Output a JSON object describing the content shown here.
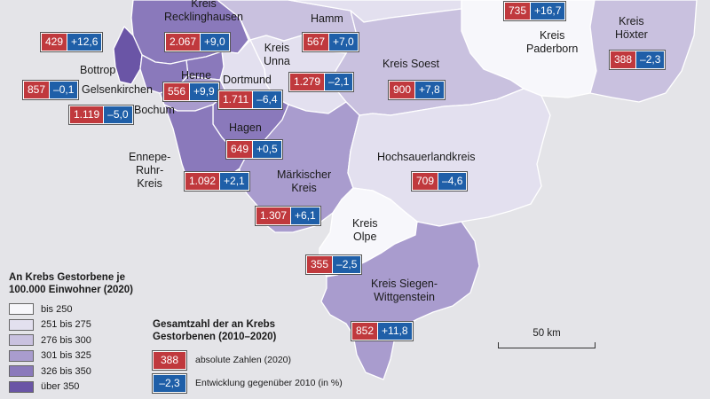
{
  "colors": {
    "class1": "#f7f7fb",
    "class2": "#e3e0ef",
    "class3": "#c9c1df",
    "class4": "#a99cce",
    "class5": "#8a79bb",
    "class6": "#6a55a6",
    "absolute": "#c0393d",
    "change": "#1f5fa8"
  },
  "regions": [
    {
      "id": "recklinghausen",
      "label": "Kreis\nRecklinghausen",
      "absolute": "2.067",
      "change": "+9,0"
    },
    {
      "id": "hamm",
      "label": "Hamm",
      "absolute": "567",
      "change": "+7,0"
    },
    {
      "id": "paderborn",
      "label": "Kreis\nPaderborn",
      "absolute": "735",
      "change": "+16,7"
    },
    {
      "id": "hoexter",
      "label": "Kreis\nHöxter",
      "absolute": "388",
      "change": "–2,3"
    },
    {
      "id": "bottrop",
      "label": "Bottrop",
      "absolute": "429",
      "change": "+12,6"
    },
    {
      "id": "unna",
      "label": "Kreis\nUnna",
      "absolute": "1.279",
      "change": "–2,1"
    },
    {
      "id": "soest",
      "label": "Kreis Soest",
      "absolute": "900",
      "change": "+7,8"
    },
    {
      "id": "gelsenkirchen",
      "label": "Gelsenkirchen",
      "absolute": "857",
      "change": "–0,1"
    },
    {
      "id": "herne",
      "label": "Herne",
      "absolute": "556",
      "change": "+9,9"
    },
    {
      "id": "dortmund",
      "label": "Dortmund",
      "absolute": "1.711",
      "change": "–6,4"
    },
    {
      "id": "bochum",
      "label": "Bochum",
      "absolute": "1.119",
      "change": "–5,0"
    },
    {
      "id": "hagen",
      "label": "Hagen",
      "absolute": "649",
      "change": "+0,5"
    },
    {
      "id": "hochsauerland",
      "label": "Hochsauerlandkreis",
      "absolute": "709",
      "change": "–4,6"
    },
    {
      "id": "ennepe",
      "label": "Ennepe-\nRuhr-\nKreis",
      "absolute": "1.092",
      "change": "+2,1"
    },
    {
      "id": "maerkisch",
      "label": "Märkischer\nKreis",
      "absolute": "1.307",
      "change": "+6,1"
    },
    {
      "id": "olpe",
      "label": "Kreis\nOlpe",
      "absolute": "355",
      "change": "–2,5"
    },
    {
      "id": "siegen",
      "label": "Kreis Siegen-\nWittgenstein",
      "absolute": "852",
      "change": "+11,8"
    }
  ],
  "legend_rate": {
    "title": "An Krebs Gestorbene je\n100.000 Einwohner (2020)",
    "items": [
      {
        "label": "bis 250",
        "color": "#f7f7fb"
      },
      {
        "label": "251 bis 275",
        "color": "#e3e0ef"
      },
      {
        "label": "276 bis 300",
        "color": "#c9c1df"
      },
      {
        "label": "301 bis 325",
        "color": "#a99cce"
      },
      {
        "label": "326 bis 350",
        "color": "#8a79bb"
      },
      {
        "label": "über 350",
        "color": "#6a55a6"
      }
    ]
  },
  "legend_total": {
    "title": "Gesamtzahl der an Krebs\nGestorbenen (2010–2020)",
    "example_absolute": "388",
    "absolute_label": "absolute Zahlen (2020)",
    "example_change": "–2,3",
    "change_label": "Entwicklung gegenüber 2010 (in %)"
  },
  "scale_label": "50 km"
}
